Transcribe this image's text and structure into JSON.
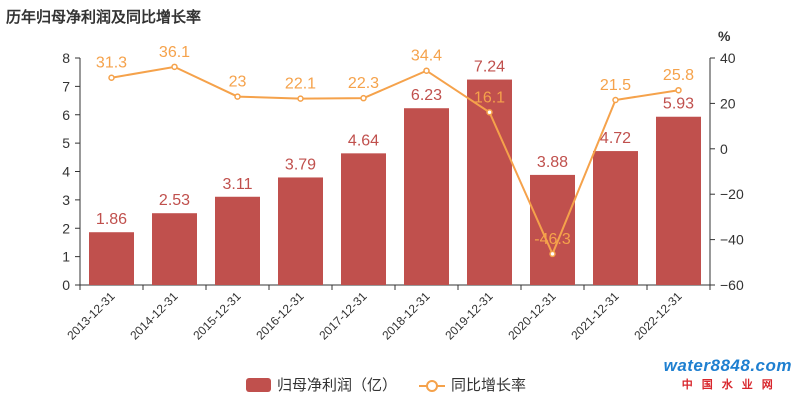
{
  "title": "历年归母净利润及同比增长率",
  "watermark": {
    "logo": "water8848.com",
    "sub": "中国水业网"
  },
  "colors": {
    "bar": "#c0504d",
    "line": "#f5a24b",
    "bar_label": "#c0504d",
    "line_label": "#f5a24b"
  },
  "chart_data": {
    "type": "bar",
    "categories": [
      "2013-12-31",
      "2014-12-31",
      "2015-12-31",
      "2016-12-31",
      "2017-12-31",
      "2018-12-31",
      "2019-12-31",
      "2020-12-31",
      "2021-12-31",
      "2022-12-31"
    ],
    "series": [
      {
        "name": "归母净利润（亿）",
        "type": "bar",
        "axis": "left",
        "values": [
          1.86,
          2.53,
          3.11,
          3.79,
          4.64,
          6.23,
          7.24,
          3.88,
          4.72,
          5.93
        ],
        "labels": [
          "1.86",
          "2.53",
          "3.11",
          "3.79",
          "4.64",
          "6.23",
          "7.24",
          "3.88",
          "4.72",
          "5.93"
        ]
      },
      {
        "name": "同比增长率",
        "type": "line",
        "axis": "right",
        "values": [
          31.3,
          36.1,
          23,
          22.1,
          22.3,
          34.4,
          16.1,
          -46.3,
          21.5,
          25.8
        ],
        "labels": [
          "31.3",
          "36.1",
          "23",
          "22.1",
          "22.3",
          "34.4",
          "16.1",
          "-46.3",
          "21.5",
          "25.8"
        ]
      }
    ],
    "y_left": {
      "min": 0,
      "max": 8,
      "ticks": [
        0,
        1,
        2,
        3,
        4,
        5,
        6,
        7,
        8
      ]
    },
    "y_right": {
      "min": -60,
      "max": 40,
      "ticks": [
        -60,
        -40,
        -20,
        0,
        20,
        40
      ],
      "unit": "%"
    },
    "grid": false,
    "legend": "bottom"
  }
}
